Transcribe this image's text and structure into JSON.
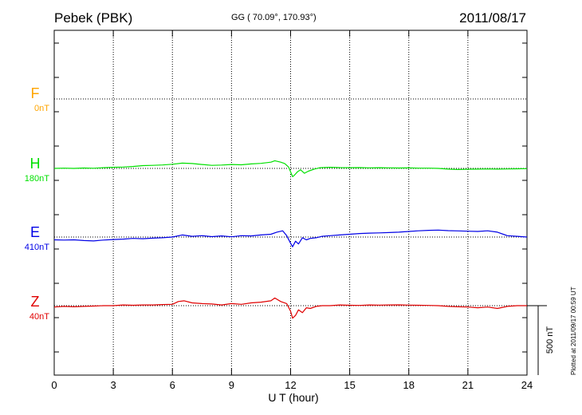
{
  "header": {
    "station": "Pebek (PBK)",
    "coords": "GG ( 70.09°, 170.93°)",
    "date": "2011/08/17"
  },
  "footer_note": "Plotted at 2011/09/17 00:59 UT",
  "chart_data": {
    "type": "line",
    "title": "Pebek (PBK)",
    "xlabel": "U T (hour)",
    "xlim": [
      0,
      24
    ],
    "xticks": [
      0,
      3,
      6,
      9,
      12,
      15,
      18,
      21,
      24
    ],
    "ylabel": "",
    "grid": true,
    "scale_bar_label": "500 nT",
    "scale_bar_nT": 500,
    "series": [
      {
        "name": "F",
        "baseline": "0nT",
        "color": "#ffa500",
        "offset_nT": 0,
        "x": [],
        "values": []
      },
      {
        "name": "H",
        "baseline": "180nT",
        "color": "#00e000",
        "offset_nT": 180,
        "x": [
          0,
          0.5,
          1,
          1.5,
          2,
          2.5,
          3,
          3.5,
          4,
          4.5,
          5,
          5.5,
          6,
          6.5,
          7,
          7.5,
          8,
          8.5,
          9,
          9.5,
          10,
          10.5,
          11,
          11.2,
          11.5,
          11.7,
          11.9,
          12.1,
          12.2,
          12.35,
          12.5,
          12.7,
          12.9,
          13.2,
          13.5,
          14,
          14.5,
          15,
          15.5,
          16,
          16.5,
          17,
          17.5,
          18,
          18.5,
          19,
          19.5,
          20,
          20.5,
          21,
          21.5,
          22,
          22.5,
          23,
          23.5,
          24
        ],
        "values": [
          0,
          2,
          0,
          3,
          1,
          5,
          8,
          10,
          14,
          20,
          22,
          25,
          30,
          38,
          35,
          28,
          22,
          24,
          28,
          26,
          32,
          36,
          45,
          55,
          45,
          35,
          10,
          -60,
          -48,
          -25,
          -10,
          -35,
          -20,
          -5,
          5,
          8,
          6,
          5,
          6,
          4,
          5,
          4,
          3,
          4,
          2,
          2,
          0,
          -5,
          -8,
          -6,
          -5,
          -4,
          -5,
          -4,
          -3,
          -2
        ]
      },
      {
        "name": "E",
        "baseline": "410nT",
        "color": "#0000e6",
        "offset_nT": 410,
        "x": [
          0,
          0.5,
          1,
          1.5,
          2,
          2.5,
          3,
          3.5,
          4,
          4.5,
          5,
          5.5,
          6,
          6.5,
          7,
          7.5,
          8,
          8.5,
          9,
          9.5,
          10,
          10.5,
          11,
          11.3,
          11.6,
          11.8,
          12,
          12.1,
          12.25,
          12.4,
          12.6,
          12.8,
          13,
          13.3,
          13.6,
          14,
          14.5,
          15,
          15.5,
          16,
          16.5,
          17,
          17.5,
          18,
          18.5,
          19,
          19.5,
          20,
          20.5,
          21,
          21.5,
          22,
          22.5,
          23,
          23.5,
          24
        ],
        "values": [
          -20,
          -22,
          -20,
          -25,
          -28,
          -22,
          -18,
          -15,
          -10,
          -12,
          -8,
          -5,
          0,
          15,
          5,
          10,
          3,
          8,
          2,
          10,
          8,
          15,
          20,
          35,
          45,
          10,
          -45,
          -70,
          -30,
          -50,
          -5,
          -20,
          -10,
          -5,
          5,
          10,
          15,
          20,
          25,
          28,
          30,
          32,
          35,
          40,
          45,
          48,
          50,
          46,
          44,
          42,
          40,
          45,
          35,
          10,
          5,
          0
        ]
      },
      {
        "name": "Z",
        "baseline": "40nT",
        "color": "#e00000",
        "offset_nT": 40,
        "x": [
          0,
          0.5,
          1,
          1.5,
          2,
          2.5,
          3,
          3.5,
          4,
          4.5,
          5,
          5.5,
          6,
          6.3,
          6.6,
          7,
          7.5,
          8,
          8.5,
          9,
          9.5,
          10,
          10.5,
          11,
          11.2,
          11.5,
          11.8,
          12,
          12.1,
          12.25,
          12.4,
          12.6,
          12.8,
          13,
          13.3,
          13.6,
          14,
          14.5,
          15,
          15.5,
          16,
          16.5,
          17,
          17.5,
          18,
          18.5,
          19,
          19.5,
          20,
          20.5,
          21,
          21.5,
          22,
          22.5,
          23,
          23.5,
          24
        ],
        "values": [
          -10,
          -5,
          -8,
          -5,
          -3,
          0,
          0,
          5,
          3,
          5,
          5,
          8,
          10,
          30,
          35,
          20,
          15,
          12,
          5,
          15,
          10,
          20,
          25,
          35,
          55,
          30,
          15,
          -40,
          -90,
          -70,
          -30,
          -50,
          -15,
          -20,
          -5,
          0,
          0,
          5,
          3,
          2,
          5,
          4,
          5,
          6,
          4,
          3,
          2,
          0,
          -5,
          -8,
          -10,
          -15,
          -10,
          -20,
          -5,
          0,
          0
        ]
      }
    ]
  }
}
